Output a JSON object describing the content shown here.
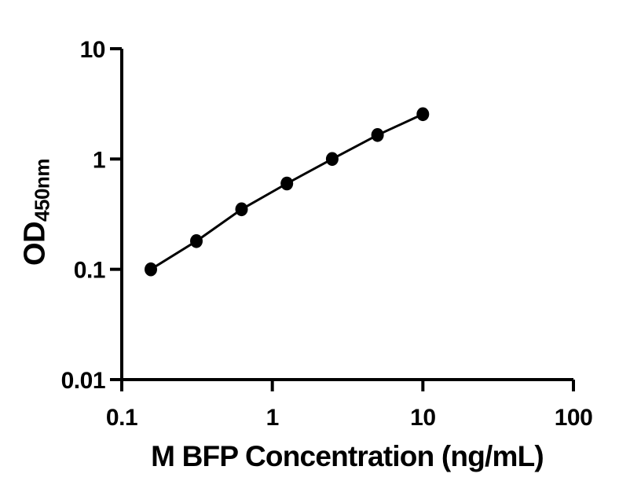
{
  "figure": {
    "background": "#ffffff"
  },
  "chart_data": {
    "type": "line",
    "x_scale": "log",
    "y_scale": "log",
    "x": [
      0.156,
      0.313,
      0.625,
      1.25,
      2.5,
      5,
      10
    ],
    "y": [
      0.1,
      0.18,
      0.35,
      0.6,
      1.0,
      1.65,
      2.55
    ],
    "title": "",
    "xlabel": "M BFP Concentration (ng/mL)",
    "ylabel": "OD",
    "ylabel_sub": "450nm",
    "xlim": [
      0.1,
      100
    ],
    "ylim": [
      0.01,
      10
    ],
    "x_ticks": [
      0.1,
      1,
      10,
      100
    ],
    "x_tick_labels": [
      "0.1",
      "1",
      "10",
      "100"
    ],
    "y_ticks": [
      0.01,
      0.1,
      1,
      10
    ],
    "y_tick_labels": [
      "0.01",
      "0.1",
      "1",
      "10"
    ],
    "grid": false,
    "legend": "none",
    "marker": "filled-circle",
    "marker_color": "#000000",
    "line_color": "#000000",
    "axis_color": "#000000",
    "text_color": "#000000"
  }
}
